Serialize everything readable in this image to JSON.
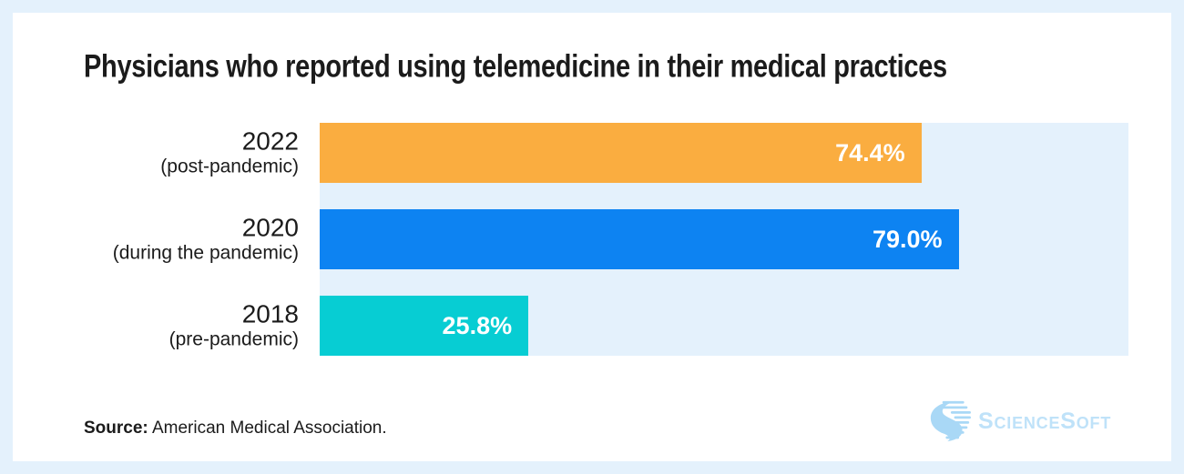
{
  "page": {
    "background": "#e4f1fc",
    "card_background": "#ffffff"
  },
  "title": "Physicians who reported using telemedicine in their medical practices",
  "chart_data": {
    "type": "bar",
    "orientation": "horizontal",
    "title": "Physicians who reported using telemedicine in their medical practices",
    "categories": [
      "2022",
      "2020",
      "2018"
    ],
    "category_sublabels": [
      "(post-pandemic)",
      "(during the pandemic)",
      "(pre-pandemic)"
    ],
    "values": [
      74.4,
      79.0,
      25.8
    ],
    "value_labels": [
      "74.4%",
      "79.0%",
      "25.8%"
    ],
    "bar_colors": [
      "#faad40",
      "#0d83f2",
      "#07cdd3"
    ],
    "track_color": "#e4f1fc",
    "value_label_color": "#ffffff",
    "xlim": [
      0,
      100
    ],
    "grid": false,
    "legend": null
  },
  "source": {
    "label": "Source:",
    "text": " American Medical Association."
  },
  "logo": {
    "text": "ScienceSoft",
    "icon": "sciencesoft-s-icon",
    "icon_color": "#a9d8f6",
    "text_color": "#bfe2f9"
  }
}
